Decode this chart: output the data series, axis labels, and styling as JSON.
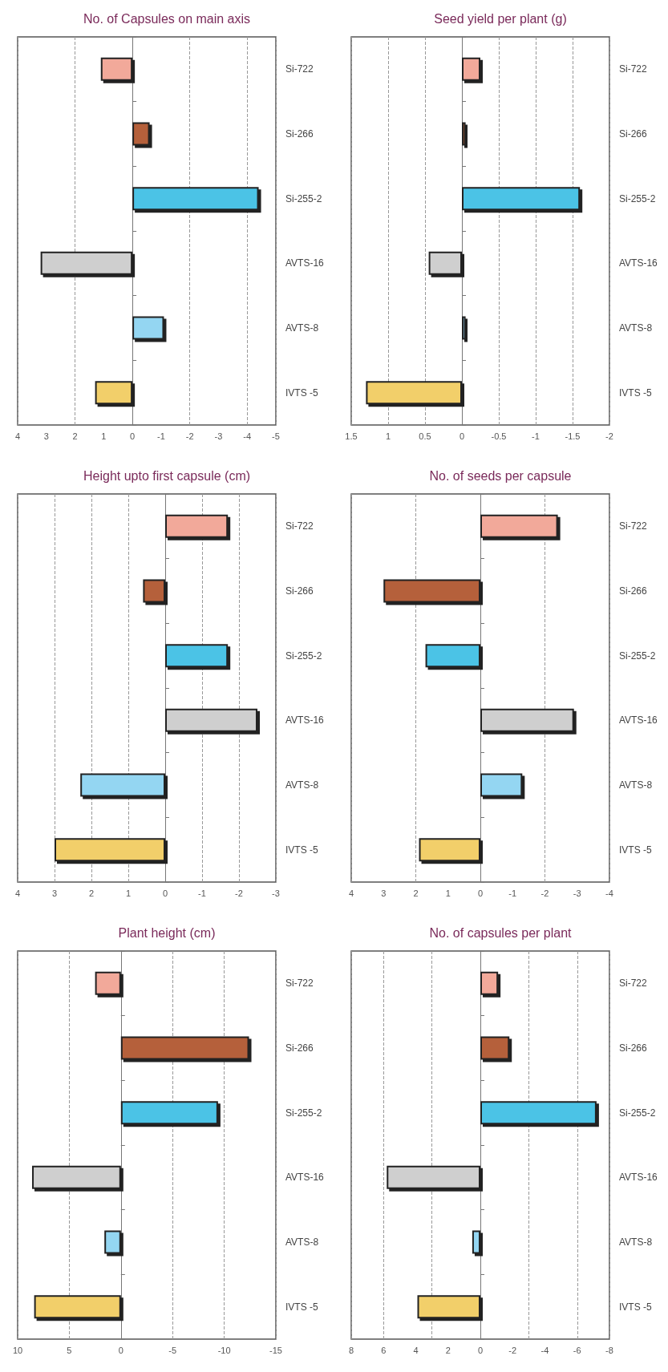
{
  "chart_data": [
    {
      "type": "bar",
      "orientation": "horizontal",
      "title": "Plant height (cm)",
      "categories": [
        "Si-722",
        "Si-266",
        "Si-255-2",
        "AVTS-16",
        "AVTS-8",
        "IVTS -5"
      ],
      "values": [
        2.5,
        -12.4,
        -9.4,
        8.6,
        1.6,
        8.4
      ],
      "colors": [
        "#f2a99a",
        "#b5603a",
        "#4cc3e6",
        "#cfcfcf",
        "#94d6f2",
        "#f2cf6a"
      ],
      "xlim": [
        10,
        -15
      ],
      "xticks": [
        10,
        5,
        0,
        -5,
        -10,
        -15
      ],
      "grid": "x"
    },
    {
      "type": "bar",
      "orientation": "horizontal",
      "title": "Height upto first capsule (cm)",
      "categories": [
        "Si-722",
        "Si-266",
        "Si-255-2",
        "AVTS-16",
        "AVTS-8",
        "IVTS -5"
      ],
      "values": [
        -1.7,
        0.6,
        -1.7,
        -2.5,
        2.3,
        3.0
      ],
      "colors": [
        "#f2a99a",
        "#b5603a",
        "#4cc3e6",
        "#cfcfcf",
        "#94d6f2",
        "#f2cf6a"
      ],
      "xlim": [
        4,
        -3
      ],
      "xticks": [
        4,
        3,
        2,
        1,
        0,
        -1,
        -2,
        -3
      ],
      "grid": "x"
    },
    {
      "type": "bar",
      "orientation": "horizontal",
      "title": "No. of Capsules on main axis",
      "categories": [
        "Si-722",
        "Si-266",
        "Si-255-2",
        "AVTS-16",
        "AVTS-8",
        "IVTS -5"
      ],
      "values": [
        1.1,
        -0.6,
        -4.4,
        3.2,
        -1.1,
        1.3
      ],
      "colors": [
        "#f2a99a",
        "#b5603a",
        "#4cc3e6",
        "#cfcfcf",
        "#94d6f2",
        "#f2cf6a"
      ],
      "xlim": [
        4,
        -5
      ],
      "xticks": [
        4,
        3,
        2,
        1,
        0,
        -1,
        -2,
        -3,
        -4,
        -5
      ],
      "grid": "x"
    },
    {
      "type": "bar",
      "orientation": "horizontal",
      "title": "No. of capsules per plant",
      "categories": [
        "Si-722",
        "Si-266",
        "Si-255-2",
        "AVTS-16",
        "AVTS-8",
        "IVTS -5"
      ],
      "values": [
        -1.1,
        -1.8,
        -7.2,
        5.8,
        0.5,
        3.9
      ],
      "colors": [
        "#f2a99a",
        "#b5603a",
        "#4cc3e6",
        "#cfcfcf",
        "#94d6f2",
        "#f2cf6a"
      ],
      "xlim": [
        8,
        -8
      ],
      "xticks": [
        8,
        6,
        4,
        2,
        0,
        -2,
        -4,
        -6,
        -8
      ],
      "grid": "x"
    },
    {
      "type": "bar",
      "orientation": "horizontal",
      "title": "No. of seeds per capsule",
      "categories": [
        "Si-722",
        "Si-266",
        "Si-255-2",
        "AVTS-16",
        "AVTS-8",
        "IVTS -5"
      ],
      "values": [
        -2.4,
        3.0,
        1.7,
        -2.9,
        -1.3,
        1.9
      ],
      "colors": [
        "#f2a99a",
        "#b5603a",
        "#4cc3e6",
        "#cfcfcf",
        "#94d6f2",
        "#f2cf6a"
      ],
      "xlim": [
        4,
        -4
      ],
      "xticks": [
        4,
        3,
        2,
        1,
        0,
        -1,
        -2,
        -3,
        -4
      ],
      "grid": "x"
    },
    {
      "type": "bar",
      "orientation": "horizontal",
      "title": "Seed yield per plant (g)",
      "categories": [
        "Si-722",
        "Si-266",
        "Si-255-2",
        "AVTS-16",
        "AVTS-8",
        "IVTS -5"
      ],
      "values": [
        -0.25,
        -0.05,
        -1.6,
        0.45,
        -0.05,
        1.3
      ],
      "colors": [
        "#f2a99a",
        "#b5603a",
        "#4cc3e6",
        "#cfcfcf",
        "#94d6f2",
        "#f2cf6a"
      ],
      "xlim": [
        1.5,
        -2
      ],
      "xticks": [
        1.5,
        1,
        0.5,
        0,
        -0.5,
        -1,
        -1.5,
        -2
      ],
      "grid": "x"
    }
  ]
}
